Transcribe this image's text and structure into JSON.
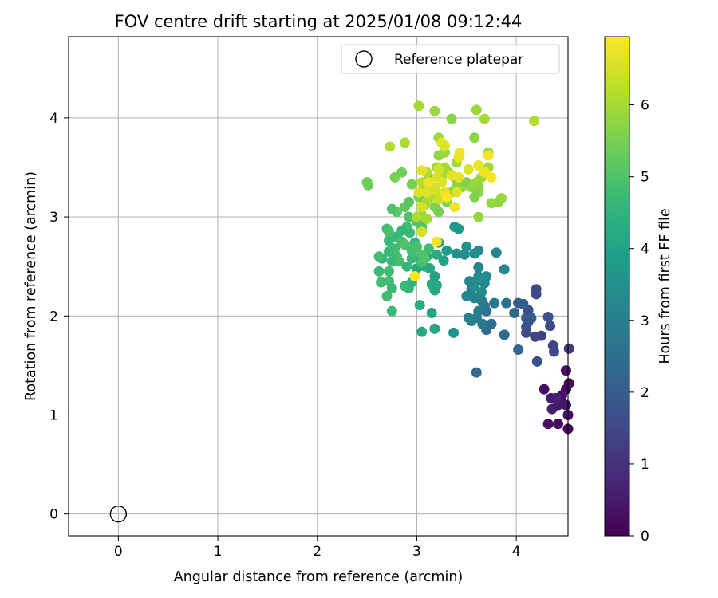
{
  "chart_data": {
    "type": "scatter",
    "title": "FOV centre drift starting at 2025/01/08 09:12:44",
    "xlabel": "Angular distance from reference (arcmin)",
    "ylabel": "Rotation from reference (arcmin)",
    "xlim": [
      -0.5,
      4.52
    ],
    "ylim": [
      -0.22,
      4.82
    ],
    "xticks": [
      0,
      1,
      2,
      3,
      4
    ],
    "yticks": [
      0,
      1,
      2,
      3,
      4
    ],
    "grid": true,
    "legend": {
      "placement": "top-right",
      "entries": [
        "Reference platepar"
      ]
    },
    "reference_point": {
      "name": "Reference platepar",
      "x": 0,
      "y": 0
    },
    "colorbar": {
      "label": "Hours from first FF file",
      "colormap": "viridis",
      "range": [
        0,
        6.95
      ],
      "ticks": [
        0,
        1,
        2,
        3,
        4,
        5,
        6
      ]
    },
    "series": [
      {
        "marker": "filled-circle",
        "columns": [
          "x",
          "y",
          "hours"
        ],
        "points": [
          [
            4.5,
            1.45,
            0.35
          ],
          [
            4.53,
            1.32,
            0.2
          ],
          [
            4.5,
            1.26,
            0.15
          ],
          [
            4.46,
            1.2,
            0.4
          ],
          [
            4.45,
            1.17,
            0.3
          ],
          [
            4.36,
            1.06,
            0.55
          ],
          [
            4.42,
            1.1,
            0.45
          ],
          [
            4.28,
            1.26,
            0.25
          ],
          [
            4.32,
            0.91,
            0.3
          ],
          [
            4.42,
            0.91,
            0.2
          ],
          [
            4.52,
            0.86,
            0.1
          ],
          [
            4.4,
            1.17,
            0.65
          ],
          [
            4.35,
            1.17,
            0.5
          ],
          [
            4.5,
            1.1,
            0.45
          ],
          [
            4.52,
            1.0,
            0.3
          ],
          [
            4.53,
            1.67,
            1.2
          ],
          [
            4.37,
            1.7,
            1.4
          ],
          [
            4.34,
            1.9,
            1.6
          ],
          [
            4.32,
            1.99,
            1.8
          ],
          [
            4.25,
            1.8,
            1.3
          ],
          [
            4.21,
            1.54,
            1.7
          ],
          [
            4.19,
            1.79,
            1.4
          ],
          [
            4.2,
            2.27,
            1.6
          ],
          [
            4.2,
            2.22,
            1.5
          ],
          [
            4.15,
            1.98,
            2.2
          ],
          [
            4.1,
            1.98,
            2.0
          ],
          [
            4.12,
            2.06,
            1.7
          ],
          [
            4.1,
            1.89,
            1.9
          ],
          [
            4.07,
            2.12,
            2.1
          ],
          [
            4.02,
            2.13,
            2.0
          ],
          [
            4.02,
            1.66,
            2.3
          ],
          [
            4.1,
            1.83,
            1.6
          ],
          [
            4.12,
            1.94,
            1.8
          ],
          [
            3.98,
            2.03,
            2.3
          ],
          [
            4.38,
            1.64,
            1.5
          ],
          [
            3.88,
            1.81,
            2.4
          ],
          [
            3.9,
            2.13,
            2.6
          ],
          [
            3.78,
            2.13,
            2.8
          ],
          [
            3.75,
            1.92,
            2.5
          ],
          [
            3.7,
            1.86,
            2.4
          ],
          [
            3.7,
            2.05,
            2.6
          ],
          [
            3.68,
            2.1,
            2.7
          ],
          [
            3.66,
            1.92,
            2.8
          ],
          [
            3.65,
            2.16,
            2.9
          ],
          [
            3.62,
            2.05,
            3.0
          ],
          [
            3.6,
            1.98,
            2.9
          ],
          [
            3.58,
            2.18,
            3.1
          ],
          [
            3.55,
            1.95,
            3.0
          ],
          [
            3.6,
            1.43,
            2.4
          ],
          [
            3.55,
            2.27,
            3.1
          ],
          [
            3.5,
            2.2,
            3.2
          ],
          [
            3.53,
            2.35,
            3.2
          ],
          [
            3.6,
            2.35,
            3.3
          ],
          [
            3.62,
            2.4,
            3.3
          ],
          [
            3.58,
            2.3,
            3.4
          ],
          [
            3.65,
            2.24,
            3.3
          ],
          [
            3.68,
            2.33,
            3.3
          ],
          [
            3.7,
            2.4,
            3.4
          ],
          [
            3.62,
            2.49,
            3.2
          ],
          [
            3.62,
            2.66,
            3.3
          ],
          [
            3.58,
            2.63,
            3.4
          ],
          [
            3.5,
            2.7,
            3.5
          ],
          [
            3.48,
            2.62,
            3.4
          ],
          [
            3.4,
            2.63,
            3.5
          ],
          [
            3.8,
            2.64,
            3.2
          ],
          [
            3.88,
            2.47,
            3.2
          ],
          [
            3.52,
            1.98,
            3.1
          ],
          [
            3.37,
            1.83,
            3.6
          ],
          [
            3.18,
            1.87,
            4.1
          ],
          [
            3.05,
            1.84,
            4.2
          ],
          [
            3.15,
            2.03,
            4.0
          ],
          [
            3.03,
            2.11,
            4.3
          ],
          [
            3.18,
            2.26,
            4.1
          ],
          [
            3.15,
            2.32,
            4.2
          ],
          [
            3.2,
            2.31,
            4.2
          ],
          [
            3.18,
            2.4,
            4.0
          ],
          [
            3.1,
            2.6,
            4.2
          ],
          [
            3.2,
            2.62,
            4.3
          ],
          [
            3.27,
            2.56,
            4.0
          ],
          [
            3.3,
            2.66,
            3.8
          ],
          [
            3.38,
            2.9,
            3.7
          ],
          [
            3.42,
            2.88,
            3.7
          ],
          [
            3.22,
            2.74,
            4.0
          ],
          [
            3.13,
            2.48,
            4.1
          ],
          [
            3.08,
            2.5,
            4.2
          ],
          [
            3.02,
            2.58,
            4.2
          ],
          [
            3.0,
            2.48,
            4.2
          ],
          [
            2.9,
            2.5,
            4.6
          ],
          [
            2.95,
            2.58,
            4.7
          ],
          [
            2.98,
            2.74,
            4.6
          ],
          [
            2.93,
            2.84,
            4.7
          ],
          [
            2.9,
            2.9,
            4.8
          ],
          [
            2.85,
            2.86,
            4.6
          ],
          [
            2.8,
            2.8,
            4.7
          ],
          [
            2.75,
            2.8,
            4.6
          ],
          [
            2.72,
            2.76,
            4.7
          ],
          [
            2.7,
            2.88,
            4.8
          ],
          [
            2.72,
            2.65,
            4.7
          ],
          [
            2.8,
            2.6,
            4.8
          ],
          [
            2.82,
            2.55,
            4.9
          ],
          [
            2.75,
            2.55,
            4.7
          ],
          [
            2.72,
            2.45,
            4.8
          ],
          [
            2.65,
            2.58,
            4.6
          ],
          [
            2.62,
            2.45,
            4.7
          ],
          [
            2.64,
            2.34,
            4.8
          ],
          [
            2.72,
            2.35,
            4.8
          ],
          [
            2.75,
            2.28,
            4.7
          ],
          [
            2.7,
            2.2,
            4.8
          ],
          [
            2.75,
            2.05,
            4.7
          ],
          [
            2.78,
            2.68,
            4.8
          ],
          [
            2.85,
            2.75,
            4.9
          ],
          [
            2.88,
            2.72,
            5.0
          ],
          [
            2.95,
            2.66,
            4.8
          ],
          [
            3.0,
            2.7,
            4.9
          ],
          [
            3.05,
            2.62,
            5.0
          ],
          [
            3.05,
            2.54,
            4.9
          ],
          [
            3.08,
            2.58,
            5.0
          ],
          [
            3.12,
            2.68,
            4.8
          ],
          [
            3.05,
            2.9,
            5.0
          ],
          [
            3.0,
            2.95,
            5.1
          ],
          [
            2.92,
            3.0,
            5.0
          ],
          [
            2.88,
            3.1,
            5.2
          ],
          [
            2.92,
            3.15,
            5.1
          ],
          [
            2.8,
            3.05,
            5.2
          ],
          [
            2.75,
            3.08,
            5.0
          ],
          [
            2.72,
            2.85,
            4.9
          ],
          [
            2.62,
            2.6,
            4.8
          ],
          [
            2.92,
            2.28,
            4.6
          ],
          [
            2.88,
            2.3,
            4.7
          ],
          [
            2.95,
            2.34,
            4.5
          ],
          [
            2.5,
            3.35,
            5.3
          ],
          [
            2.51,
            3.32,
            5.4
          ],
          [
            2.78,
            3.4,
            5.5
          ],
          [
            2.85,
            3.45,
            5.4
          ],
          [
            2.88,
            3.75,
            6.1
          ],
          [
            2.73,
            3.71,
            6.1
          ],
          [
            2.95,
            3.33,
            5.5
          ],
          [
            3.02,
            3.2,
            5.6
          ],
          [
            3.08,
            3.28,
            5.5
          ],
          [
            3.12,
            3.4,
            5.6
          ],
          [
            3.15,
            3.3,
            5.7
          ],
          [
            3.18,
            3.1,
            5.6
          ],
          [
            3.22,
            3.05,
            5.5
          ],
          [
            3.25,
            3.2,
            5.7
          ],
          [
            3.3,
            3.15,
            5.6
          ],
          [
            3.35,
            3.25,
            5.8
          ],
          [
            3.38,
            3.4,
            5.8
          ],
          [
            3.4,
            3.32,
            5.7
          ],
          [
            3.45,
            3.3,
            5.8
          ],
          [
            3.5,
            3.35,
            5.6
          ],
          [
            3.55,
            3.3,
            5.8
          ],
          [
            3.6,
            3.35,
            5.9
          ],
          [
            3.62,
            3.3,
            5.8
          ],
          [
            3.65,
            3.4,
            5.9
          ],
          [
            3.62,
            3.25,
            5.7
          ],
          [
            3.58,
            3.2,
            5.6
          ],
          [
            3.62,
            3.0,
            5.8
          ],
          [
            3.72,
            3.5,
            6.0
          ],
          [
            3.75,
            3.14,
            5.8
          ],
          [
            3.72,
            3.65,
            5.9
          ],
          [
            3.58,
            3.8,
            5.7
          ],
          [
            3.6,
            4.08,
            5.9
          ],
          [
            3.68,
            3.99,
            6.0
          ],
          [
            3.35,
            3.99,
            5.7
          ],
          [
            3.22,
            3.8,
            5.9
          ],
          [
            3.18,
            4.07,
            5.9
          ],
          [
            3.02,
            4.12,
            6.0
          ],
          [
            3.22,
            3.62,
            5.8
          ],
          [
            3.28,
            3.65,
            5.9
          ],
          [
            3.2,
            3.5,
            5.9
          ],
          [
            3.28,
            3.5,
            6.0
          ],
          [
            4.18,
            3.97,
            6.1
          ],
          [
            3.85,
            3.19,
            5.9
          ],
          [
            3.82,
            3.15,
            5.8
          ],
          [
            3.4,
            3.55,
            5.9
          ],
          [
            3.32,
            3.45,
            6.0
          ],
          [
            3.25,
            3.4,
            6.1
          ],
          [
            3.1,
            3.45,
            6.1
          ],
          [
            3.05,
            3.35,
            6.2
          ],
          [
            3.15,
            3.22,
            6.0
          ],
          [
            3.12,
            3.18,
            6.1
          ],
          [
            3.2,
            3.25,
            6.2
          ],
          [
            3.08,
            3.12,
            6.0
          ],
          [
            3.05,
            3.02,
            5.9
          ],
          [
            3.1,
            2.98,
            6.0
          ],
          [
            3.0,
            3.0,
            6.1
          ],
          [
            3.05,
            3.1,
            6.5
          ],
          [
            3.1,
            3.25,
            6.6
          ],
          [
            3.18,
            3.28,
            6.5
          ],
          [
            3.22,
            3.18,
            6.4
          ],
          [
            3.25,
            3.35,
            6.6
          ],
          [
            3.28,
            3.25,
            6.7
          ],
          [
            3.2,
            3.4,
            6.6
          ],
          [
            3.22,
            3.48,
            6.5
          ],
          [
            3.25,
            3.75,
            6.7
          ],
          [
            3.28,
            3.72,
            6.6
          ],
          [
            3.42,
            3.6,
            6.7
          ],
          [
            3.43,
            3.65,
            6.8
          ],
          [
            3.52,
            3.48,
            6.6
          ],
          [
            3.62,
            3.52,
            6.7
          ],
          [
            3.72,
            3.62,
            6.8
          ],
          [
            3.75,
            3.4,
            6.9
          ],
          [
            3.42,
            3.4,
            6.7
          ],
          [
            3.4,
            3.25,
            6.6
          ],
          [
            3.38,
            3.1,
            6.8
          ],
          [
            3.05,
            3.47,
            6.7
          ],
          [
            3.02,
            3.25,
            6.6
          ],
          [
            3.2,
            2.75,
            6.8
          ],
          [
            2.98,
            2.4,
            6.9
          ],
          [
            3.05,
            2.85,
            6.5
          ],
          [
            3.12,
            3.35,
            6.8
          ],
          [
            3.3,
            3.2,
            6.9
          ],
          [
            3.35,
            3.42,
            6.7
          ],
          [
            3.68,
            3.45,
            6.8
          ]
        ]
      }
    ]
  }
}
